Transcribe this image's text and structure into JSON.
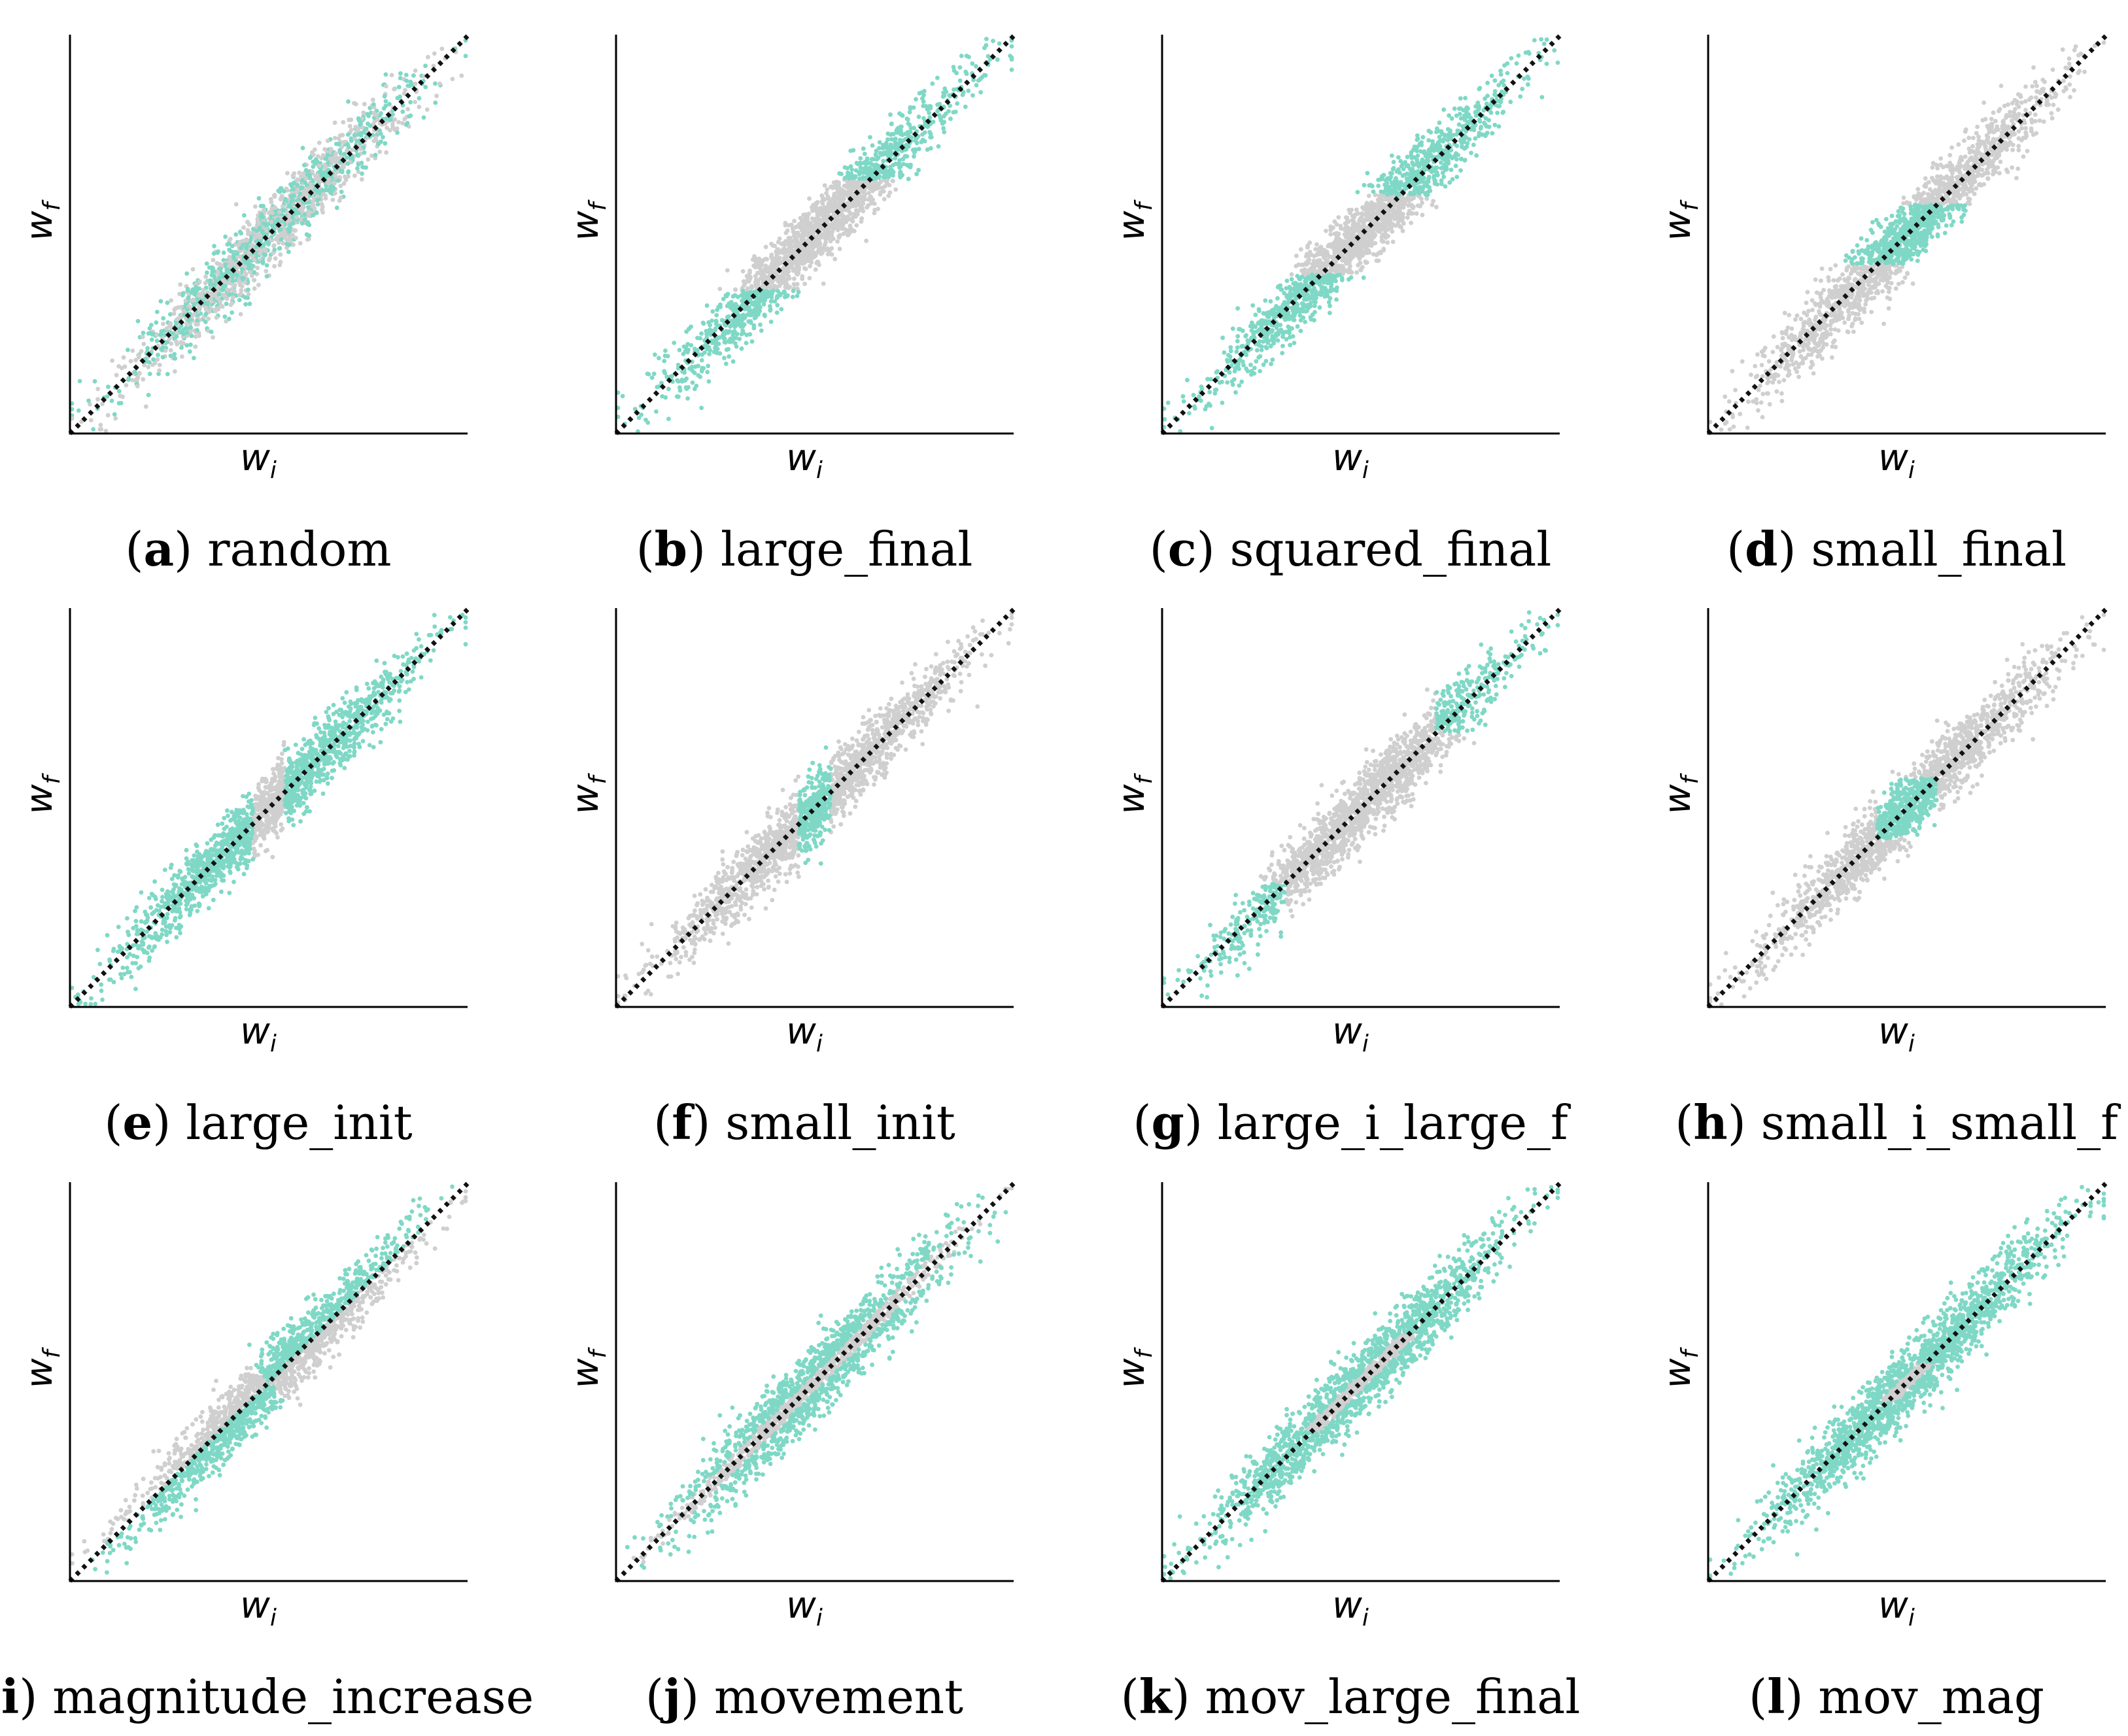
{
  "figure": {
    "colors": {
      "kept": "#7fd8c6",
      "other": "#cfcfcf",
      "diagonal": "#111111",
      "axis": "#000000"
    },
    "axis_labels": {
      "x_base": "w",
      "x_sub": "i",
      "y_base": "w",
      "y_sub": "f"
    }
  },
  "chart_data": [
    {
      "id": "a",
      "type": "scatter",
      "letter": "a",
      "caption": "random",
      "rule": "random",
      "kept_fraction": 0.5,
      "xlabel": "w_i",
      "ylabel": "w_f",
      "xlim": [
        -1,
        1
      ],
      "ylim": [
        -1,
        1
      ],
      "reference_line": "y = x"
    },
    {
      "id": "b",
      "type": "scatter",
      "letter": "b",
      "caption": "large_final",
      "rule": "abs_final_above",
      "threshold": 0.28,
      "xlabel": "w_i",
      "ylabel": "w_f",
      "xlim": [
        -1,
        1
      ],
      "ylim": [
        -1,
        1
      ],
      "reference_line": "y = x"
    },
    {
      "id": "c",
      "type": "scatter",
      "letter": "c",
      "caption": "squared_final",
      "rule": "abs_final_above",
      "threshold": 0.2,
      "xlabel": "w_i",
      "ylabel": "w_f",
      "xlim": [
        -1,
        1
      ],
      "ylim": [
        -1,
        1
      ],
      "reference_line": "y = x"
    },
    {
      "id": "d",
      "type": "scatter",
      "letter": "d",
      "caption": "small_final",
      "rule": "abs_final_below",
      "threshold": 0.15,
      "xlabel": "w_i",
      "ylabel": "w_f",
      "xlim": [
        -1,
        1
      ],
      "ylim": [
        -1,
        1
      ],
      "reference_line": "y = x"
    },
    {
      "id": "e",
      "type": "scatter",
      "letter": "e",
      "caption": "large_init",
      "rule": "abs_init_above",
      "threshold": 0.08,
      "xlabel": "w_i",
      "ylabel": "w_f",
      "xlim": [
        -1,
        1
      ],
      "ylim": [
        -1,
        1
      ],
      "reference_line": "y = x"
    },
    {
      "id": "f",
      "type": "scatter",
      "letter": "f",
      "caption": "small_init",
      "rule": "abs_init_below",
      "threshold": 0.08,
      "xlabel": "w_i",
      "ylabel": "w_f",
      "xlim": [
        -1,
        1
      ],
      "ylim": [
        -1,
        1
      ],
      "reference_line": "y = x"
    },
    {
      "id": "g",
      "type": "scatter",
      "letter": "g",
      "caption": "large_i_large_f",
      "rule": "both_large_same_sign",
      "threshold": 0.38,
      "xlabel": "w_i",
      "ylabel": "w_f",
      "xlim": [
        -1,
        1
      ],
      "ylim": [
        -1,
        1
      ],
      "reference_line": "y = x"
    },
    {
      "id": "h",
      "type": "scatter",
      "letter": "h",
      "caption": "small_i_small_f",
      "rule": "both_small",
      "threshold": 0.15,
      "xlabel": "w_i",
      "ylabel": "w_f",
      "xlim": [
        -1,
        1
      ],
      "ylim": [
        -1,
        1
      ],
      "reference_line": "y = x"
    },
    {
      "id": "i",
      "type": "scatter",
      "letter": "i",
      "caption": "magnitude_increase",
      "rule": "magnitude_increase",
      "xlabel": "w_i",
      "ylabel": "w_f",
      "xlim": [
        -1,
        1
      ],
      "ylim": [
        -1,
        1
      ],
      "reference_line": "y = x"
    },
    {
      "id": "j",
      "type": "scatter",
      "letter": "j",
      "caption": "movement",
      "rule": "abs_movement_above",
      "threshold": 0.05,
      "xlabel": "w_i",
      "ylabel": "w_f",
      "xlim": [
        -1,
        1
      ],
      "ylim": [
        -1,
        1
      ],
      "reference_line": "y = x"
    },
    {
      "id": "k",
      "type": "scatter",
      "letter": "k",
      "caption": "mov_large_final",
      "rule": "mov_large_final",
      "threshold": 0.25,
      "xlabel": "w_i",
      "ylabel": "w_f",
      "xlim": [
        -1,
        1
      ],
      "ylim": [
        -1,
        1
      ],
      "reference_line": "y = x"
    },
    {
      "id": "l",
      "type": "scatter",
      "letter": "l",
      "caption": "mov_mag",
      "rule": "mov_mag",
      "threshold": 0.05,
      "xlabel": "w_i",
      "ylabel": "w_f",
      "xlim": [
        -1,
        1
      ],
      "ylim": [
        -1,
        1
      ],
      "reference_line": "y = x"
    }
  ]
}
